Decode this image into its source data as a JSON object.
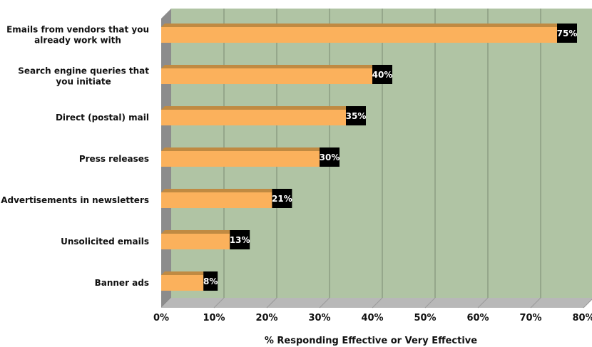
{
  "chart_data": {
    "type": "bar",
    "orientation": "horizontal",
    "categories": [
      "Emails from vendors that you already work with",
      "Search engine queries that you initiate",
      "Direct (postal) mail",
      "Press releases",
      "Advertisements in newsletters",
      "Unsolicited emails",
      "Banner ads"
    ],
    "category_lines": [
      [
        "Emails from vendors that you",
        "already work with"
      ],
      [
        "Search engine queries that",
        "you initiate"
      ],
      [
        "Direct (postal) mail"
      ],
      [
        "Press releases"
      ],
      [
        "Advertisements in newsletters"
      ],
      [
        "Unsolicited emails"
      ],
      [
        "Banner ads"
      ]
    ],
    "values": [
      75,
      40,
      35,
      30,
      21,
      13,
      8
    ],
    "data_labels": [
      "75%",
      "40%",
      "35%",
      "30%",
      "21%",
      "13%",
      "8%"
    ],
    "xlim": [
      0,
      80
    ],
    "x_ticks": [
      "0%",
      "10%",
      "20%",
      "30%",
      "40%",
      "50%",
      "60%",
      "70%",
      "80%"
    ],
    "xlabel": "% Responding Effective or Very Effective",
    "ylabel": "",
    "title": "",
    "grid": true,
    "style": "3d",
    "colors": {
      "plot_background": "#b0c4a4",
      "wall_side": "#8c8c8c",
      "floor": "#b8b8b8",
      "bar_front": "#fbb15c",
      "bar_top": "#c08a42",
      "data_label_background": "#000000",
      "data_label_text": "#ffffff",
      "gridline": "#7a8a72"
    }
  }
}
